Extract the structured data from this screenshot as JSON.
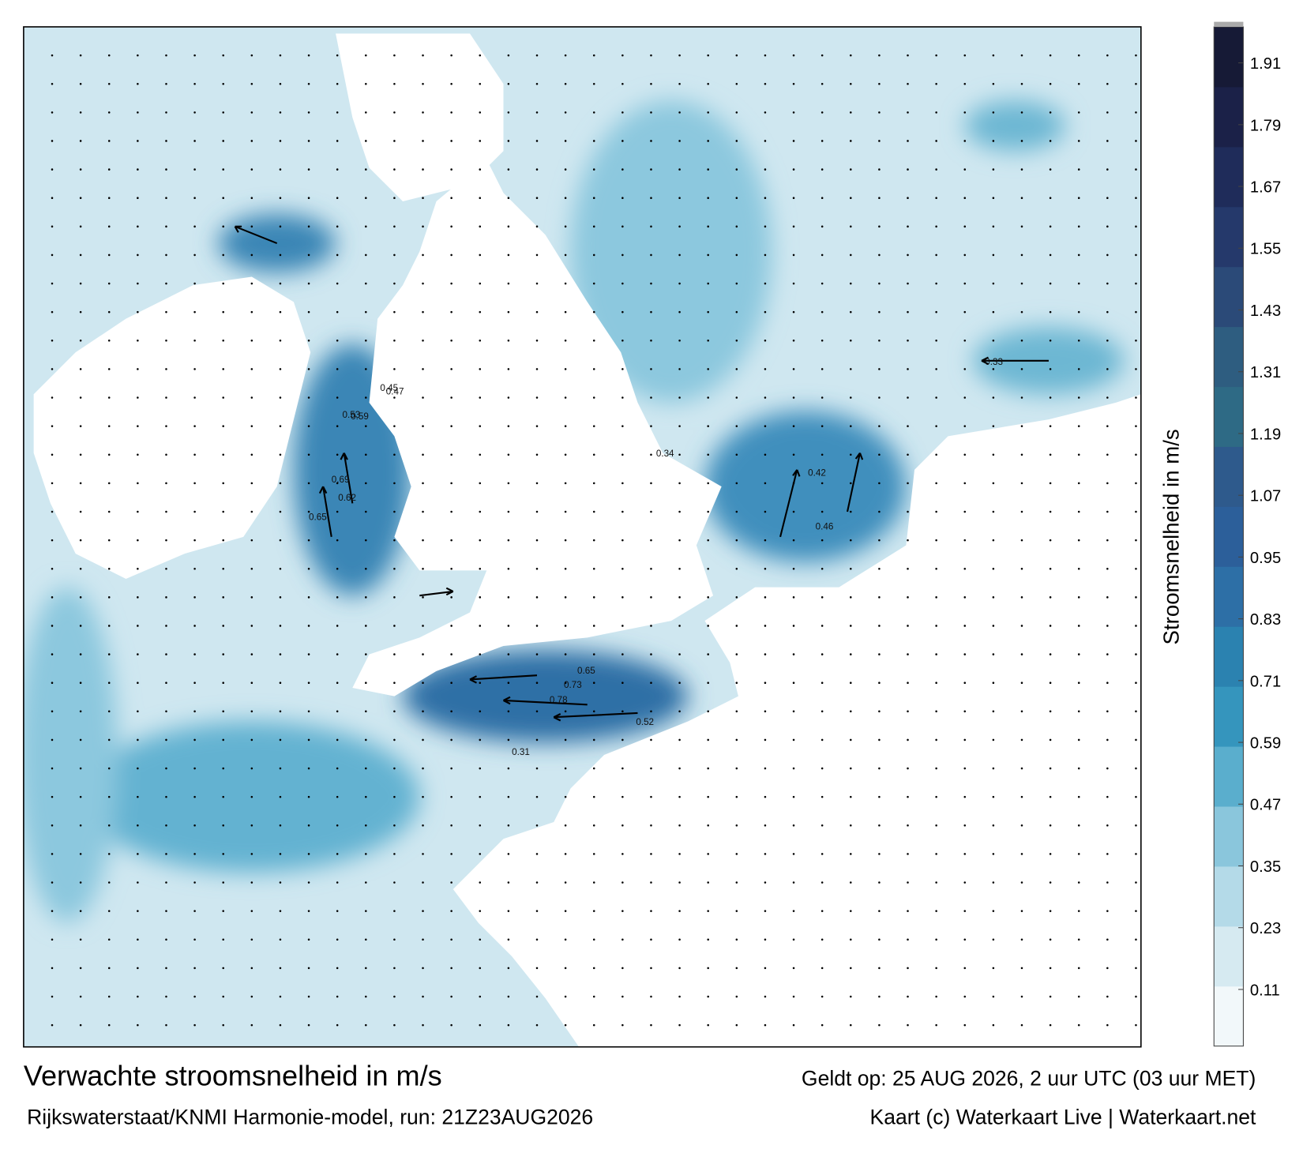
{
  "chart_data": {
    "type": "map",
    "title": "Verwachte stroomsnelheid in m/s",
    "subtitle": "Rijkswaterstaat/KNMI Harmonie-model, run: 21Z23AUG2026",
    "valid_time": "Geldt op: 25 AUG 2026, 2 uur UTC (03 uur MET)",
    "credit": "Kaart (c) Waterkaart Live | Waterkaart.net",
    "colorbar_label": "Stroomsnelheid in m/s",
    "clim": [
      0,
      1.98
    ],
    "cticks": [
      0.11,
      0.23,
      0.35,
      0.47,
      0.59,
      0.71,
      0.83,
      0.95,
      1.07,
      1.19,
      1.31,
      1.43,
      1.55,
      1.67,
      1.79,
      1.91
    ],
    "colormap": [
      "#f2f8fa",
      "#d6eaf1",
      "#b4dae8",
      "#8ac6dc",
      "#5aaecd",
      "#3595bd",
      "#2b82b0",
      "#2d6fa6",
      "#2c5f9a",
      "#2e5a8c",
      "#2e6a85",
      "#2e5d80",
      "#2b4a78",
      "#25396b",
      "#1f2c5a",
      "#1b2148",
      "#161a36"
    ],
    "map_labels": [
      "0.78",
      "0.73",
      "0.65",
      "0.69",
      "0.62",
      "0.65",
      "0.53",
      "0.59",
      "0.47",
      "0.45",
      "0.42",
      "0.34",
      "0.33",
      "0.31",
      "0.46",
      "0.52"
    ]
  }
}
